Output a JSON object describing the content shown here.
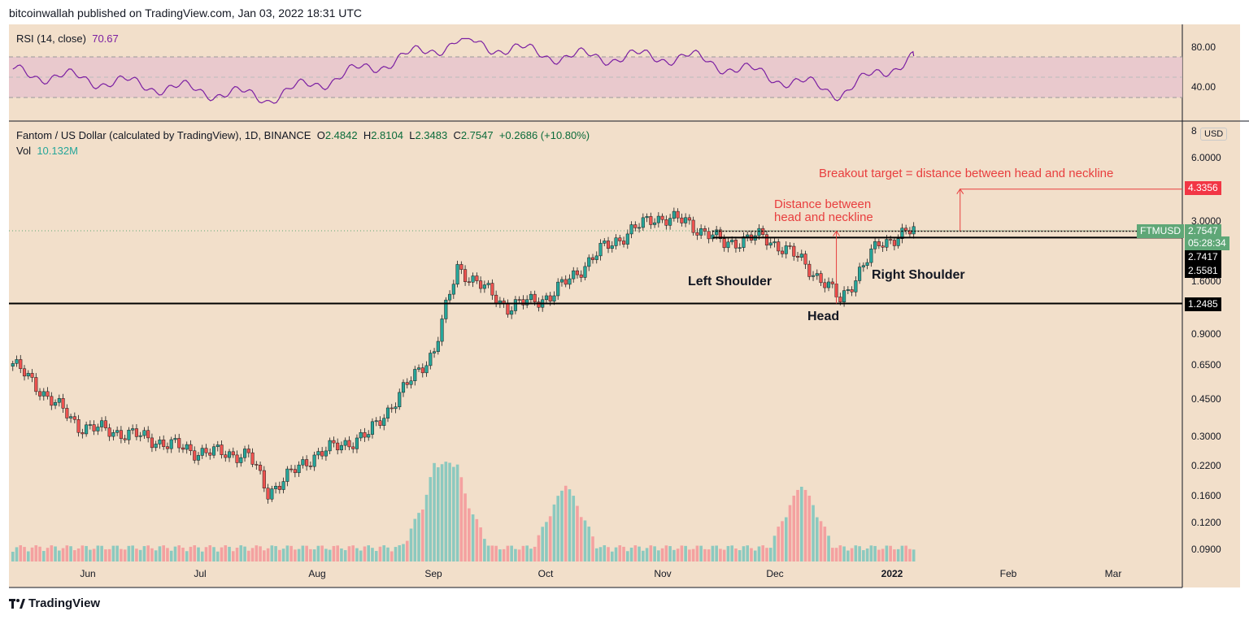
{
  "header": {
    "published_by": "bitcoinwallah published on TradingView.com, Jan 03, 2022 18:31 UTC"
  },
  "rsi": {
    "label": "RSI (14, close)",
    "value": "70.67",
    "axis_ticks": [
      "80.00",
      "40.00"
    ]
  },
  "main": {
    "title": "Fantom / US Dollar (calculated by TradingView), 1D, BINANCE",
    "o_label": "O",
    "o_value": "2.4842",
    "h_label": "H",
    "h_value": "2.8104",
    "l_label": "L",
    "l_value": "2.3483",
    "c_label": "C",
    "c_value": "2.7547",
    "change": "+0.2686 (+10.80%)",
    "vol_label": "Vol",
    "vol_value": "10.132M",
    "currency": "USD"
  },
  "price_axis": [
    "8",
    "6.0000",
    "3.0000",
    "1.6000",
    "0.9000",
    "0.6500",
    "0.4500",
    "0.3000",
    "0.2200",
    "0.1600",
    "0.1200",
    "0.0900"
  ],
  "price_tags": {
    "target": "4.3356",
    "symbol": "FTMUSD",
    "last": "2.7547",
    "countdown": "05:28:34",
    "neck_top": "2.7417",
    "neck_low": "2.5581",
    "support": "1.2485"
  },
  "annotations": {
    "breakout": "Breakout target = distance between head and neckline",
    "distance_1": "Distance between",
    "distance_2": "head and neckline",
    "left_shoulder": "Left Shoulder",
    "head": "Head",
    "right_shoulder": "Right Shoulder"
  },
  "time_axis": [
    "Jun",
    "Jul",
    "Aug",
    "Sep",
    "Oct",
    "Nov",
    "Dec",
    "2022",
    "Feb",
    "Mar"
  ],
  "footer": {
    "brand": "TradingView"
  },
  "colors": {
    "bg": "#f2dfca",
    "up": "#26a69a",
    "down": "#ef5350",
    "rsi": "#7b1fa2",
    "annotation": "#e83e3e"
  },
  "chart_data": {
    "type": "candlestick",
    "symbol": "FTMUSD",
    "x": [
      "2021-05-15",
      "2021-06-01",
      "2021-06-15",
      "2021-07-01",
      "2021-07-15",
      "2021-07-20",
      "2021-08-01",
      "2021-08-15",
      "2021-09-01",
      "2021-09-07",
      "2021-09-20",
      "2021-10-01",
      "2021-10-15",
      "2021-10-28",
      "2021-11-05",
      "2021-11-15",
      "2021-11-25",
      "2021-12-05",
      "2021-12-15",
      "2021-12-25",
      "2022-01-03"
    ],
    "close": [
      0.65,
      0.33,
      0.3,
      0.25,
      0.24,
      0.16,
      0.24,
      0.3,
      0.75,
      1.85,
      1.2,
      1.35,
      2.3,
      3.2,
      3.05,
      2.4,
      2.6,
      2.0,
      1.3,
      2.4,
      2.7547
    ],
    "yscale": "log",
    "levels": {
      "breakout_target": 4.3356,
      "neckline_top": 2.7417,
      "neckline_low": 2.5581,
      "support": 1.2485
    },
    "rsi": {
      "x": [
        "2021-05-15",
        "2021-07-20",
        "2021-09-07",
        "2021-10-05",
        "2021-11-05",
        "2021-12-15",
        "2022-01-03"
      ],
      "values": [
        55,
        30,
        85,
        70,
        70,
        35,
        70.67
      ],
      "ylim": [
        20,
        90
      ]
    },
    "volume": {
      "peaks": [
        "2021-09-01",
        "2021-09-07",
        "2021-10-05",
        "2021-12-05"
      ]
    }
  }
}
